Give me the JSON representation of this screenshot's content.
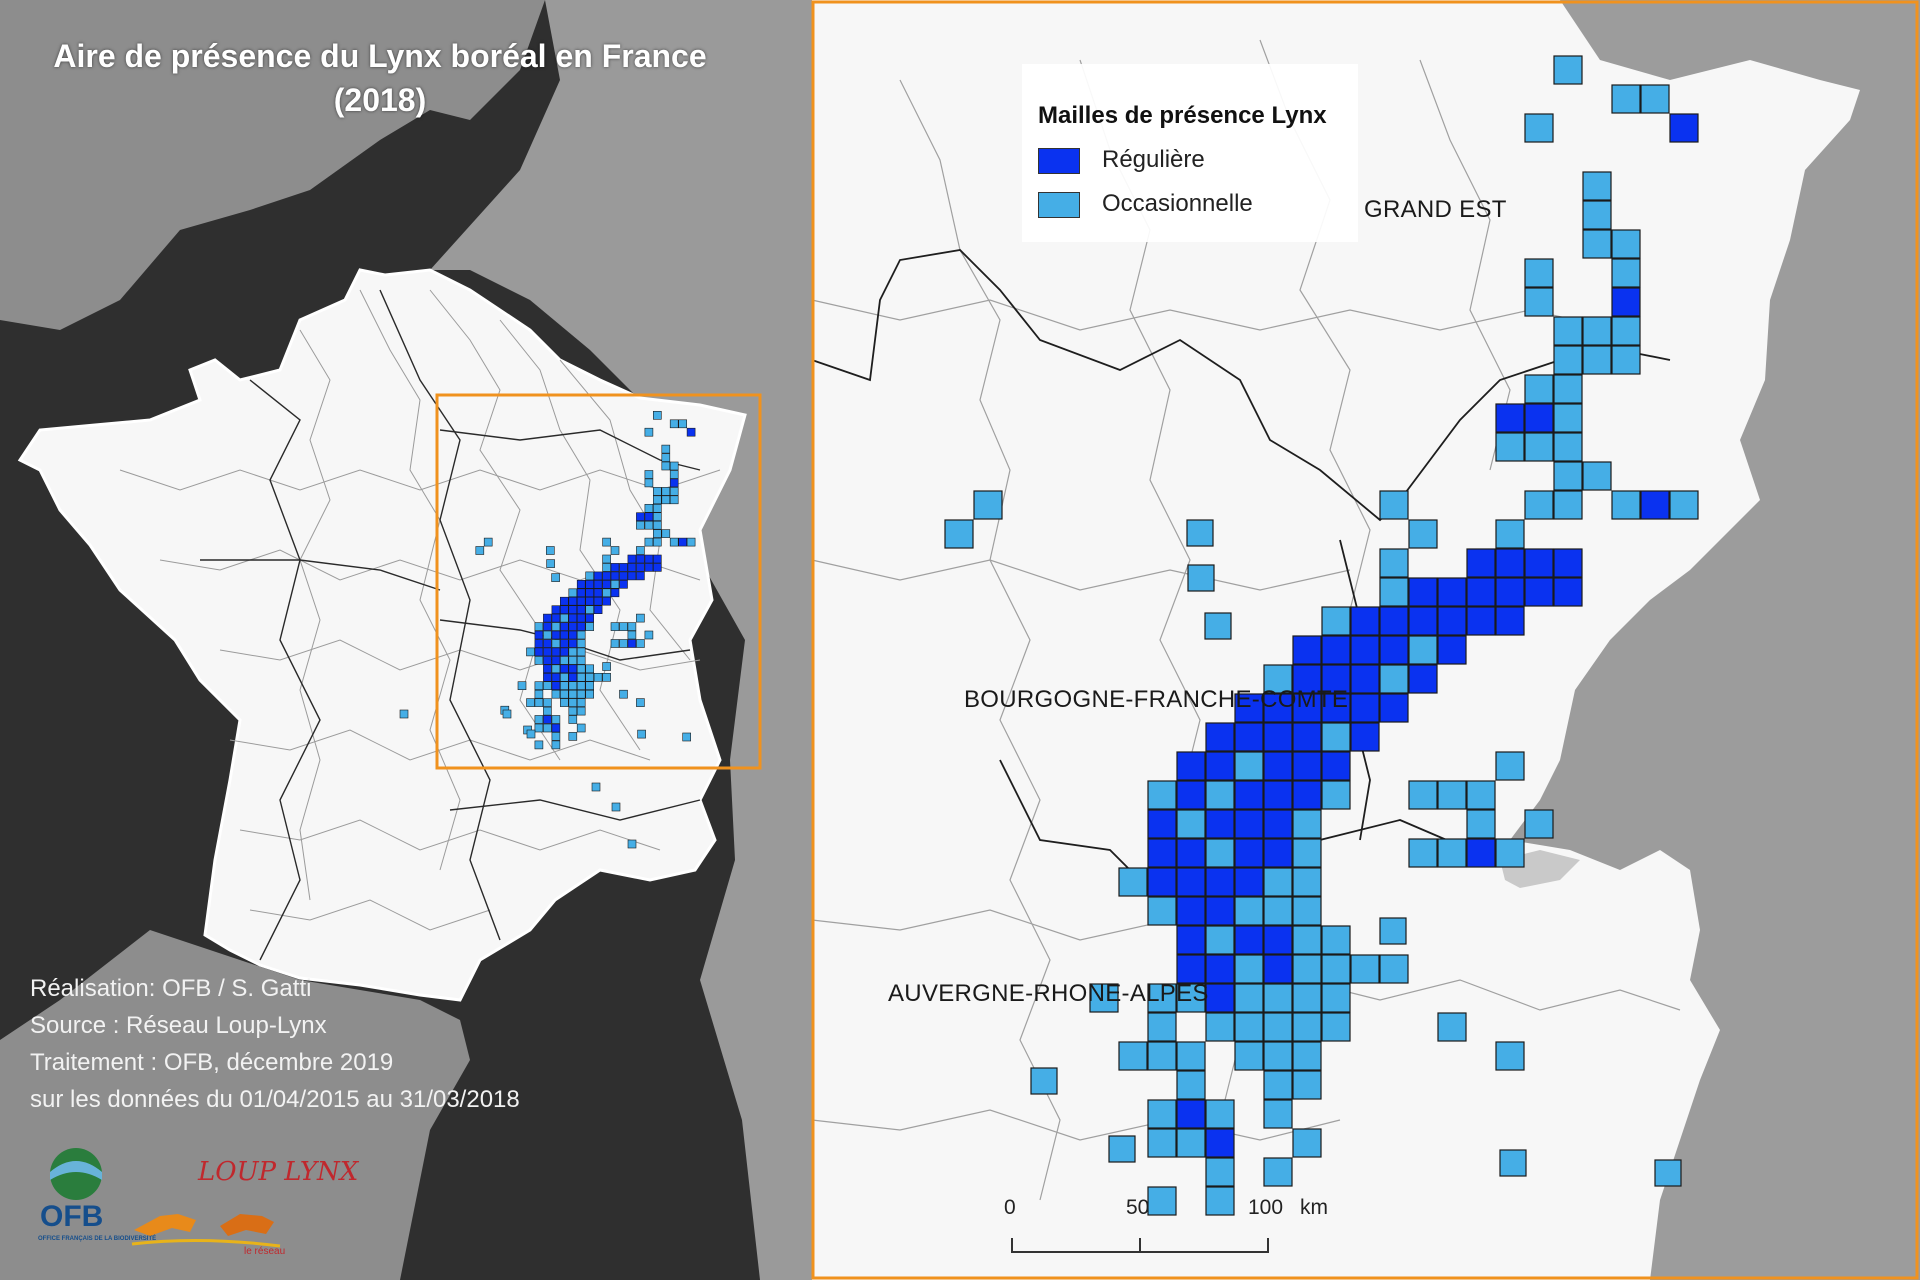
{
  "title": {
    "line1": "Aire de présence du Lynx boréal en France",
    "line2": "(2018)"
  },
  "credits": [
    "Réalisation: OFB / S. Gatti",
    "Source : Réseau Loup-Lynx",
    "Traitement : OFB, décembre 2019",
    "sur les données du 01/04/2015 au 31/03/2018"
  ],
  "legend": {
    "title": "Mailles de présence Lynx",
    "items": [
      {
        "label": "Régulière",
        "color": "#0a32f0"
      },
      {
        "label": "Occasionnelle",
        "color": "#45aee6"
      }
    ]
  },
  "regions": [
    {
      "name": "GRAND EST"
    },
    {
      "name": "BOURGOGNE-FRANCHE-COMTE"
    },
    {
      "name": "AUVERGNE-RHONE-ALPES"
    }
  ],
  "scalebar": {
    "ticks": [
      "0",
      "50",
      "100"
    ],
    "unit": "km"
  },
  "logos": {
    "ofb_text": "OFB",
    "ofb_subtext": "OFFICE FRANÇAIS DE LA BIODIVERSITÉ",
    "lynx_text": "LOUP LYNX",
    "lynx_subtext": "le réseau"
  },
  "colors": {
    "sea": "#2f2f2f",
    "outside_land": "#9a9a9a",
    "france": "#f7f7f7",
    "inset_frame": "#f0921e",
    "regular": "#0a32f0",
    "occasional": "#45aee6"
  }
}
